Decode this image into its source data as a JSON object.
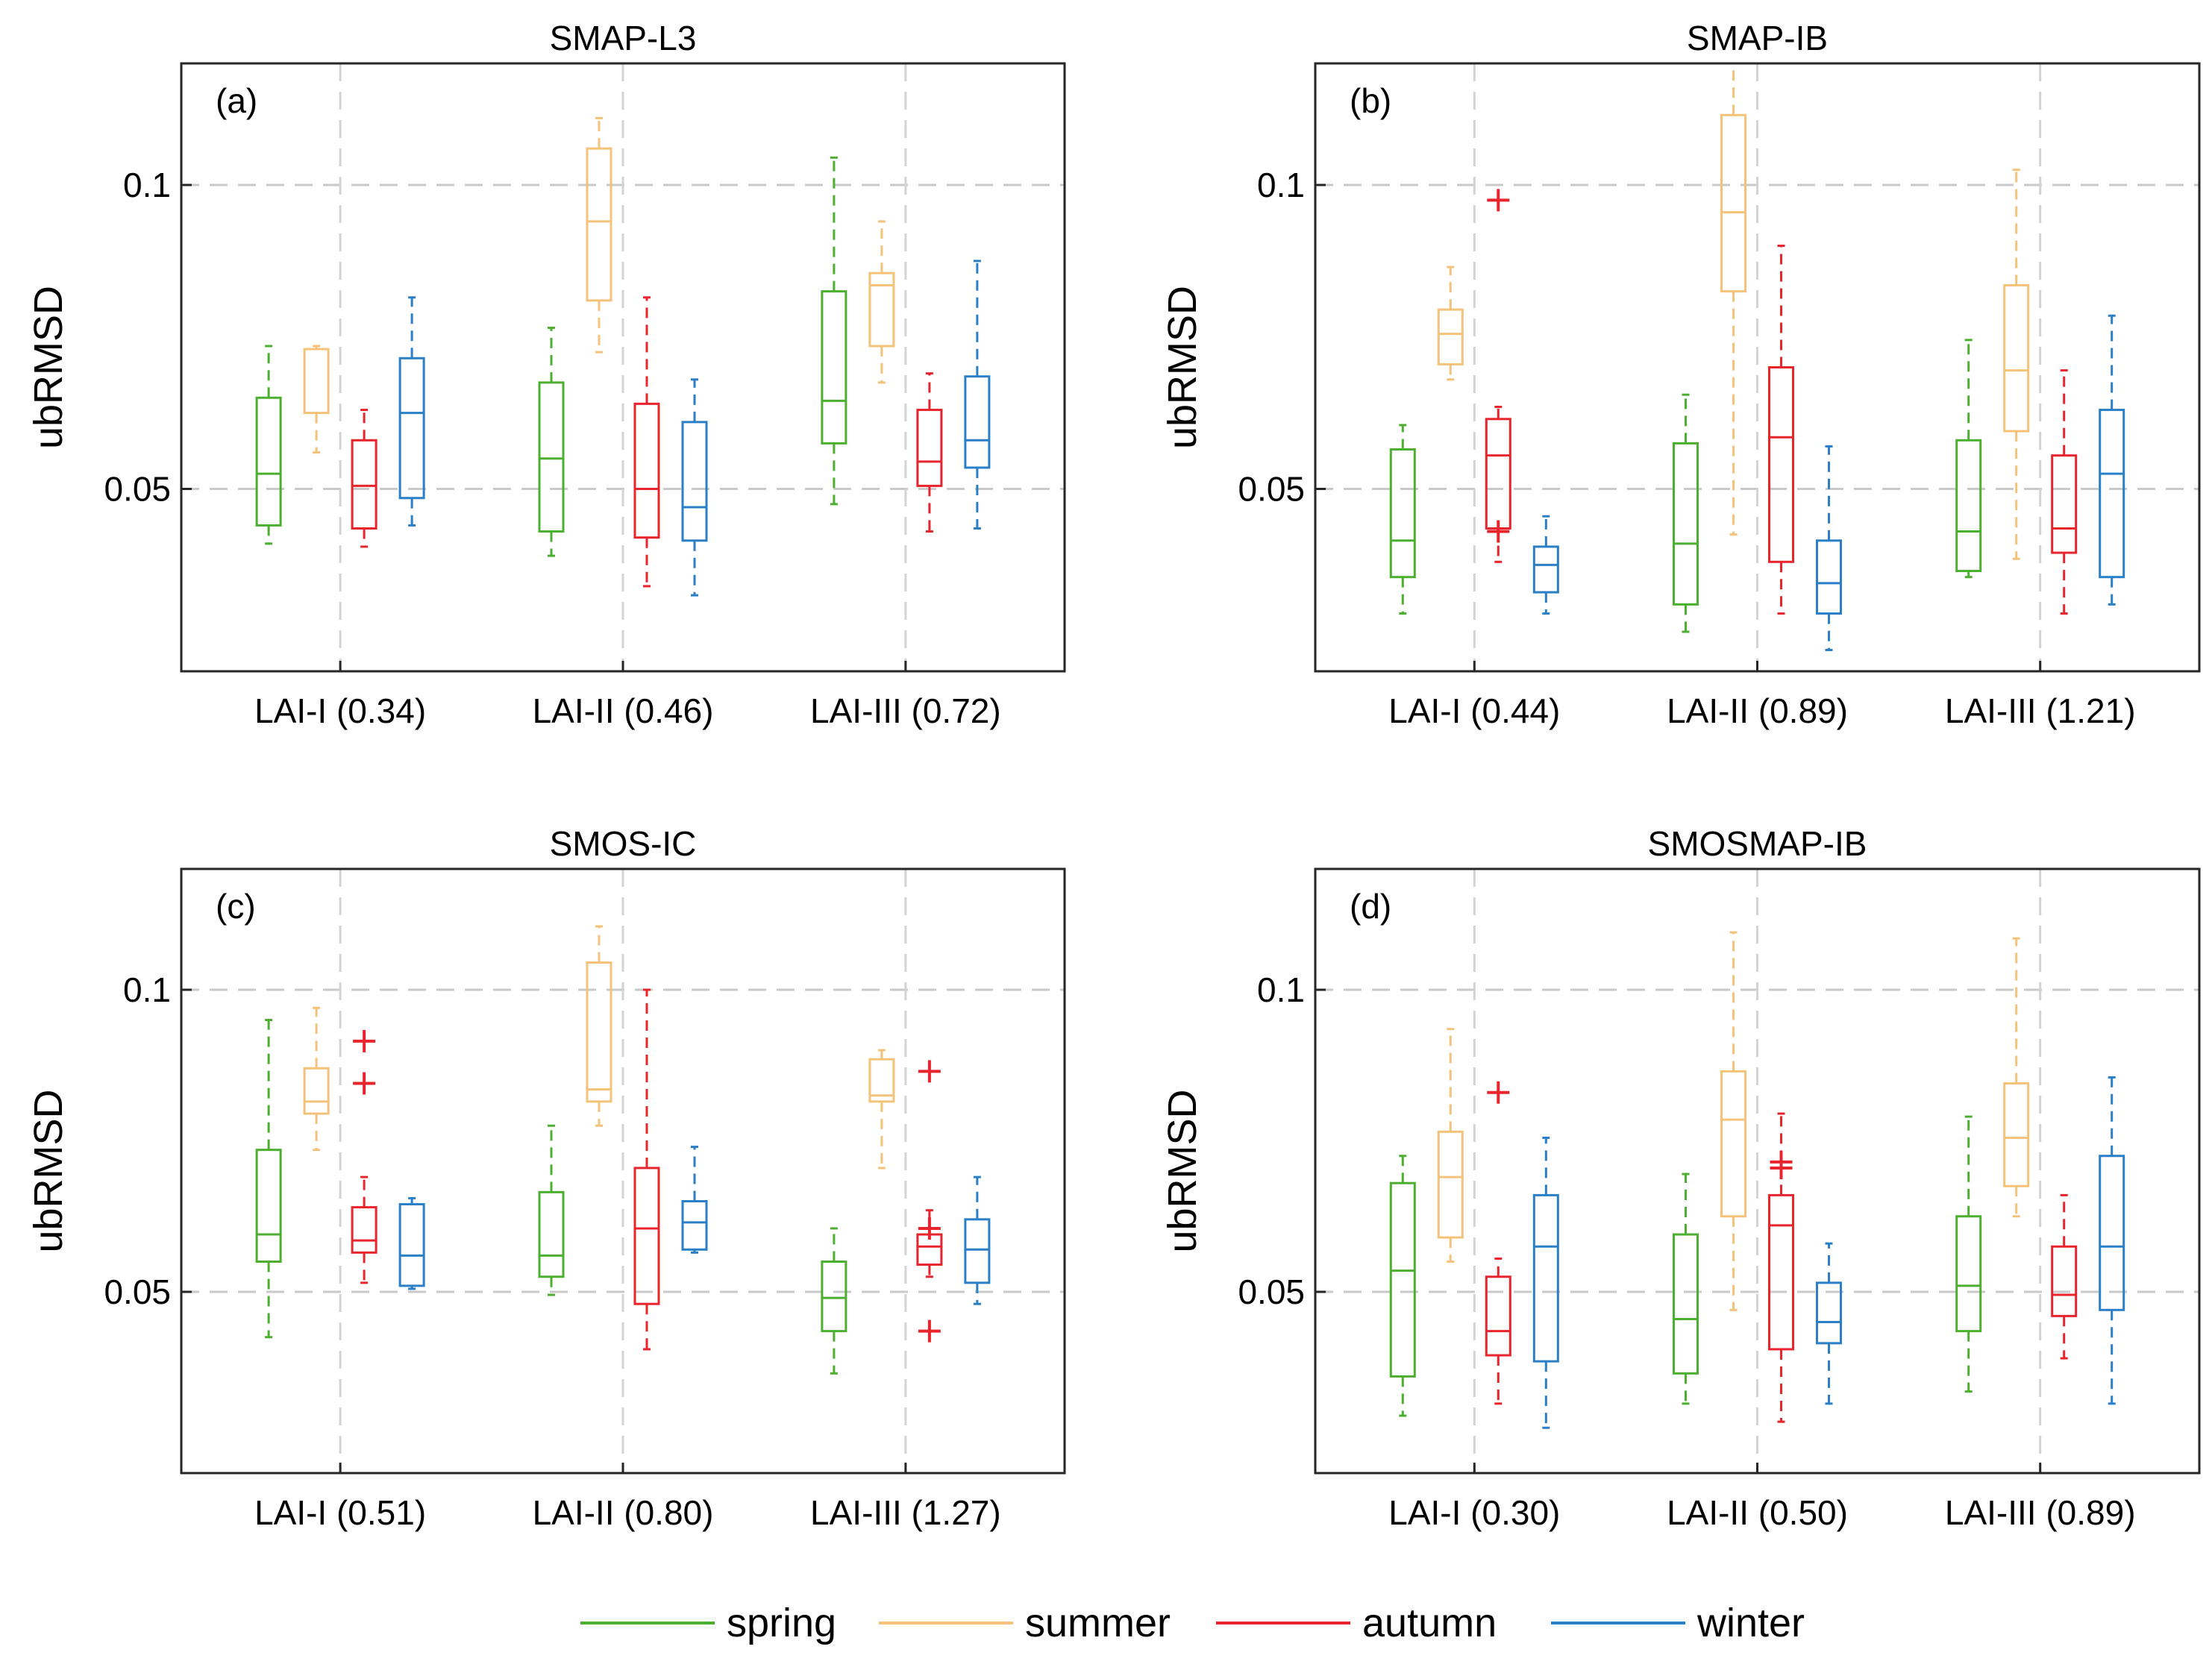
{
  "legend": [
    {
      "label": "spring",
      "color": "#4caf30"
    },
    {
      "label": "summer",
      "color": "#f5c27a"
    },
    {
      "label": "autumn",
      "color": "#e8242c"
    },
    {
      "label": "winter",
      "color": "#2a7fc7"
    }
  ],
  "chart_data": [
    {
      "type": "boxplot",
      "title": "SMAP-L3",
      "panel_label": "(a)",
      "ylabel": "ubRMSD",
      "ylim": [
        0.02,
        0.12
      ],
      "yticks": [
        0.05,
        0.1
      ],
      "ytick_labels": [
        "0.05",
        "0.1"
      ],
      "grid": true,
      "categories": [
        "LAI-I (0.34)",
        "LAI-II (0.46)",
        "LAI-III (0.72)"
      ],
      "series": [
        {
          "name": "spring",
          "boxes": [
            {
              "min": 0.041,
              "q1": 0.044,
              "median": 0.0525,
              "q3": 0.065,
              "max": 0.0735,
              "outliers": []
            },
            {
              "min": 0.039,
              "q1": 0.043,
              "median": 0.055,
              "q3": 0.0675,
              "max": 0.0765,
              "outliers": []
            },
            {
              "min": 0.0475,
              "q1": 0.0575,
              "median": 0.0645,
              "q3": 0.0825,
              "max": 0.1045,
              "outliers": []
            }
          ]
        },
        {
          "name": "summer",
          "boxes": [
            {
              "min": 0.056,
              "q1": 0.0625,
              "median": 0.073,
              "q3": 0.073,
              "max": 0.0735,
              "outliers": []
            },
            {
              "min": 0.0725,
              "q1": 0.081,
              "median": 0.094,
              "q3": 0.106,
              "max": 0.111,
              "outliers": []
            },
            {
              "min": 0.0675,
              "q1": 0.0735,
              "median": 0.0835,
              "q3": 0.0855,
              "max": 0.094,
              "outliers": []
            }
          ]
        },
        {
          "name": "autumn",
          "boxes": [
            {
              "min": 0.0405,
              "q1": 0.0435,
              "median": 0.0505,
              "q3": 0.058,
              "max": 0.063,
              "outliers": []
            },
            {
              "min": 0.034,
              "q1": 0.042,
              "median": 0.05,
              "q3": 0.064,
              "max": 0.0815,
              "outliers": []
            },
            {
              "min": 0.043,
              "q1": 0.0505,
              "median": 0.0545,
              "q3": 0.063,
              "max": 0.069,
              "outliers": []
            }
          ]
        },
        {
          "name": "winter",
          "boxes": [
            {
              "min": 0.044,
              "q1": 0.0485,
              "median": 0.0625,
              "q3": 0.0715,
              "max": 0.0815,
              "outliers": []
            },
            {
              "min": 0.0325,
              "q1": 0.0415,
              "median": 0.047,
              "q3": 0.061,
              "max": 0.068,
              "outliers": []
            },
            {
              "min": 0.0435,
              "q1": 0.0535,
              "median": 0.058,
              "q3": 0.0685,
              "max": 0.0875,
              "outliers": []
            }
          ]
        }
      ]
    },
    {
      "type": "boxplot",
      "title": "SMAP-IB",
      "panel_label": "(b)",
      "ylabel": "ubRMSD",
      "ylim": [
        0.02,
        0.12
      ],
      "yticks": [
        0.05,
        0.1
      ],
      "ytick_labels": [
        "0.05",
        "0.1"
      ],
      "grid": true,
      "categories": [
        "LAI-I (0.44)",
        "LAI-II (0.89)",
        "LAI-III (1.21)"
      ],
      "series": [
        {
          "name": "spring",
          "boxes": [
            {
              "min": 0.0295,
              "q1": 0.0355,
              "median": 0.0415,
              "q3": 0.0565,
              "max": 0.0605,
              "outliers": []
            },
            {
              "min": 0.0265,
              "q1": 0.031,
              "median": 0.041,
              "q3": 0.0575,
              "max": 0.0655,
              "outliers": []
            },
            {
              "min": 0.0355,
              "q1": 0.0365,
              "median": 0.043,
              "q3": 0.058,
              "max": 0.0745,
              "outliers": []
            }
          ]
        },
        {
          "name": "summer",
          "boxes": [
            {
              "min": 0.068,
              "q1": 0.0705,
              "median": 0.0755,
              "q3": 0.0795,
              "max": 0.0865,
              "outliers": []
            },
            {
              "min": 0.0425,
              "q1": 0.0825,
              "median": 0.0955,
              "q3": 0.1115,
              "max": 0.12,
              "outliers": []
            },
            {
              "min": 0.0385,
              "q1": 0.0595,
              "median": 0.0695,
              "q3": 0.0835,
              "max": 0.1025,
              "outliers": []
            }
          ]
        },
        {
          "name": "autumn",
          "boxes": [
            {
              "min": 0.038,
              "q1": 0.0435,
              "median": 0.0555,
              "q3": 0.0615,
              "max": 0.0635,
              "outliers": [
                0.043,
                0.0975
              ]
            },
            {
              "min": 0.0295,
              "q1": 0.038,
              "median": 0.0585,
              "q3": 0.07,
              "max": 0.09,
              "outliers": []
            },
            {
              "min": 0.0295,
              "q1": 0.0395,
              "median": 0.0435,
              "q3": 0.0555,
              "max": 0.0695,
              "outliers": []
            }
          ]
        },
        {
          "name": "winter",
          "boxes": [
            {
              "min": 0.0295,
              "q1": 0.033,
              "median": 0.0375,
              "q3": 0.0405,
              "max": 0.0455,
              "outliers": []
            },
            {
              "min": 0.0235,
              "q1": 0.0295,
              "median": 0.0345,
              "q3": 0.0415,
              "max": 0.057,
              "outliers": []
            },
            {
              "min": 0.031,
              "q1": 0.0355,
              "median": 0.0525,
              "q3": 0.063,
              "max": 0.0785,
              "outliers": []
            }
          ]
        }
      ]
    },
    {
      "type": "boxplot",
      "title": "SMOS-IC",
      "panel_label": "(c)",
      "ylabel": "ubRMSD",
      "ylim": [
        0.02,
        0.12
      ],
      "yticks": [
        0.05,
        0.1
      ],
      "ytick_labels": [
        "0.05",
        "0.1"
      ],
      "grid": true,
      "categories": [
        "LAI-I (0.51)",
        "LAI-II (0.80)",
        "LAI-III (1.27)"
      ],
      "series": [
        {
          "name": "spring",
          "boxes": [
            {
              "min": 0.0425,
              "q1": 0.055,
              "median": 0.0595,
              "q3": 0.0735,
              "max": 0.095,
              "outliers": []
            },
            {
              "min": 0.0495,
              "q1": 0.0525,
              "median": 0.056,
              "q3": 0.0665,
              "max": 0.0775,
              "outliers": []
            },
            {
              "min": 0.0365,
              "q1": 0.0435,
              "median": 0.049,
              "q3": 0.055,
              "max": 0.0605,
              "outliers": []
            }
          ]
        },
        {
          "name": "summer",
          "boxes": [
            {
              "min": 0.0735,
              "q1": 0.0795,
              "median": 0.0815,
              "q3": 0.087,
              "max": 0.097,
              "outliers": []
            },
            {
              "min": 0.0775,
              "q1": 0.0815,
              "median": 0.0835,
              "q3": 0.1045,
              "max": 0.1105,
              "outliers": []
            },
            {
              "min": 0.0705,
              "q1": 0.0815,
              "median": 0.0825,
              "q3": 0.0885,
              "max": 0.09,
              "outliers": []
            }
          ]
        },
        {
          "name": "autumn",
          "boxes": [
            {
              "min": 0.0515,
              "q1": 0.0565,
              "median": 0.0585,
              "q3": 0.064,
              "max": 0.069,
              "outliers": [
                0.0845,
                0.0915
              ]
            },
            {
              "min": 0.0405,
              "q1": 0.048,
              "median": 0.0605,
              "q3": 0.0705,
              "max": 0.1,
              "outliers": []
            },
            {
              "min": 0.0525,
              "q1": 0.0545,
              "median": 0.0575,
              "q3": 0.0595,
              "max": 0.0635,
              "outliers": [
                0.0605,
                0.0435,
                0.0865
              ]
            }
          ]
        },
        {
          "name": "winter",
          "boxes": [
            {
              "min": 0.0505,
              "q1": 0.051,
              "median": 0.056,
              "q3": 0.0645,
              "max": 0.0655,
              "outliers": []
            },
            {
              "min": 0.0565,
              "q1": 0.057,
              "median": 0.0615,
              "q3": 0.065,
              "max": 0.074,
              "outliers": []
            },
            {
              "min": 0.048,
              "q1": 0.0515,
              "median": 0.057,
              "q3": 0.062,
              "max": 0.069,
              "outliers": []
            }
          ]
        }
      ]
    },
    {
      "type": "boxplot",
      "title": "SMOSMAP-IB",
      "panel_label": "(d)",
      "ylabel": "ubRMSD",
      "ylim": [
        0.02,
        0.12
      ],
      "yticks": [
        0.05,
        0.1
      ],
      "ytick_labels": [
        "0.05",
        "0.1"
      ],
      "grid": true,
      "categories": [
        "LAI-I (0.30)",
        "LAI-II (0.50)",
        "LAI-III (0.89)"
      ],
      "series": [
        {
          "name": "spring",
          "boxes": [
            {
              "min": 0.0295,
              "q1": 0.036,
              "median": 0.0535,
              "q3": 0.068,
              "max": 0.0725,
              "outliers": []
            },
            {
              "min": 0.0315,
              "q1": 0.0365,
              "median": 0.0455,
              "q3": 0.0595,
              "max": 0.0695,
              "outliers": []
            },
            {
              "min": 0.0335,
              "q1": 0.0435,
              "median": 0.051,
              "q3": 0.0625,
              "max": 0.079,
              "outliers": []
            }
          ]
        },
        {
          "name": "summer",
          "boxes": [
            {
              "min": 0.055,
              "q1": 0.059,
              "median": 0.069,
              "q3": 0.0765,
              "max": 0.0935,
              "outliers": []
            },
            {
              "min": 0.047,
              "q1": 0.0625,
              "median": 0.0785,
              "q3": 0.0865,
              "max": 0.1095,
              "outliers": []
            },
            {
              "min": 0.0625,
              "q1": 0.0675,
              "median": 0.0755,
              "q3": 0.0845,
              "max": 0.1085,
              "outliers": []
            }
          ]
        },
        {
          "name": "autumn",
          "boxes": [
            {
              "min": 0.0315,
              "q1": 0.0395,
              "median": 0.0435,
              "q3": 0.0525,
              "max": 0.0555,
              "outliers": [
                0.083
              ]
            },
            {
              "min": 0.0285,
              "q1": 0.0405,
              "median": 0.061,
              "q3": 0.066,
              "max": 0.0795,
              "outliers": [
                0.0705,
                0.0715
              ]
            },
            {
              "min": 0.039,
              "q1": 0.046,
              "median": 0.0495,
              "q3": 0.0575,
              "max": 0.066,
              "outliers": []
            }
          ]
        },
        {
          "name": "winter",
          "boxes": [
            {
              "min": 0.0275,
              "q1": 0.0385,
              "median": 0.0575,
              "q3": 0.066,
              "max": 0.0755,
              "outliers": []
            },
            {
              "min": 0.0315,
              "q1": 0.0415,
              "median": 0.045,
              "q3": 0.0515,
              "max": 0.058,
              "outliers": []
            },
            {
              "min": 0.0315,
              "q1": 0.047,
              "median": 0.0575,
              "q3": 0.0725,
              "max": 0.0855,
              "outliers": []
            }
          ]
        }
      ]
    }
  ]
}
